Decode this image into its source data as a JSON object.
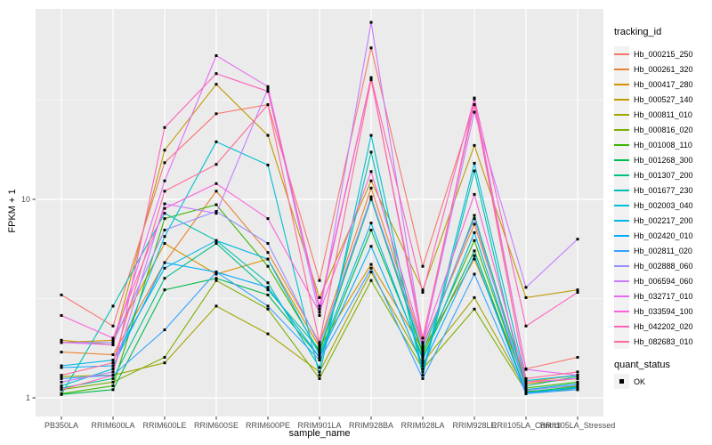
{
  "chart_data": {
    "type": "line",
    "title": "",
    "xlabel": "sample_name",
    "ylabel": "FPKM + 1",
    "y_scale": "log10",
    "ylim": [
      0.8,
      91
    ],
    "y_major_ticks": [
      1,
      10
    ],
    "y_minor_ticks": [
      3.162,
      31.623
    ],
    "grid": true,
    "panel_bg": "#EBEBEB",
    "grid_color": "#FFFFFF",
    "tick_text_color": "#4D4D4D",
    "point_marker": {
      "shape": "square",
      "color": "#000000",
      "size": 3
    },
    "legend": {
      "title": "tracking_id",
      "position": "right"
    },
    "quant_legend": {
      "title": "quant_status",
      "items": [
        "OK"
      ]
    },
    "categories": [
      "PB350LA",
      "RRIM600LA",
      "RRIM600LE",
      "RRIM600SE",
      "RRIM600PE",
      "RRIM901LA",
      "RRIM928BA",
      "RRIM928LA",
      "RRIM928LE",
      "RRII105LA_Control",
      "RRII105LA_Stressed"
    ],
    "series": [
      {
        "name": "Hb_000215_250",
        "color": "#F8766D",
        "values": [
          3.3,
          2.3,
          15.3,
          27,
          30,
          3.9,
          58,
          4.6,
          30,
          1.4,
          1.6
        ]
      },
      {
        "name": "Hb_000261_320",
        "color": "#EA8331",
        "values": [
          1.7,
          1.65,
          4.8,
          11,
          5.4,
          1.9,
          11.4,
          1.85,
          7.5,
          1.2,
          1.3
        ]
      },
      {
        "name": "Hb_000417_280",
        "color": "#D89000",
        "values": [
          1.9,
          1.95,
          6.0,
          4.2,
          5.0,
          1.8,
          4.7,
          1.75,
          5.0,
          1.18,
          1.25
        ]
      },
      {
        "name": "Hb_000527_140",
        "color": "#C09B00",
        "values": [
          1.95,
          1.85,
          17.7,
          38,
          21,
          3.2,
          12.4,
          3.5,
          18.7,
          3.2,
          3.5
        ]
      },
      {
        "name": "Hb_000811_010",
        "color": "#A3A500",
        "values": [
          1.28,
          1.3,
          1.5,
          2.9,
          2.1,
          1.35,
          4.3,
          1.5,
          3.2,
          1.1,
          1.15
        ]
      },
      {
        "name": "Hb_000816_020",
        "color": "#7CAE00",
        "values": [
          1.1,
          1.2,
          1.6,
          3.9,
          2.8,
          1.25,
          3.9,
          1.4,
          2.8,
          1.08,
          1.1
        ]
      },
      {
        "name": "Hb_001008_110",
        "color": "#39B600",
        "values": [
          1.05,
          1.15,
          8.0,
          9.4,
          4.6,
          1.7,
          10.3,
          1.65,
          6.2,
          1.12,
          1.2
        ]
      },
      {
        "name": "Hb_001268_300",
        "color": "#00BB4E",
        "values": [
          1.04,
          1.1,
          3.5,
          4.0,
          3.3,
          1.6,
          7.0,
          1.6,
          5.5,
          1.07,
          1.14
        ]
      },
      {
        "name": "Hb_001307_200",
        "color": "#00C087",
        "values": [
          1.12,
          1.25,
          4.0,
          6.0,
          3.5,
          1.75,
          10.0,
          1.7,
          8.3,
          1.15,
          1.28
        ]
      },
      {
        "name": "Hb_001677_230",
        "color": "#00C0B2",
        "values": [
          1.04,
          2.9,
          8.5,
          6.2,
          3.8,
          1.42,
          17.3,
          1.3,
          13.9,
          1.05,
          1.13
        ]
      },
      {
        "name": "Hb_002003_040",
        "color": "#00BFD4",
        "values": [
          1.15,
          1.4,
          6.5,
          19.5,
          14.9,
          1.3,
          21,
          1.35,
          15.2,
          1.22,
          1.3
        ]
      },
      {
        "name": "Hb_002217_200",
        "color": "#00B8E5",
        "values": [
          1.45,
          1.55,
          4.5,
          6.2,
          5.0,
          1.65,
          7.6,
          1.55,
          6.8,
          1.1,
          1.18
        ]
      },
      {
        "name": "Hb_002420_010",
        "color": "#00ACFC",
        "values": [
          1.42,
          1.45,
          4.8,
          4.3,
          3.6,
          1.6,
          5.8,
          1.45,
          5.2,
          1.06,
          1.12
        ]
      },
      {
        "name": "Hb_002811_020",
        "color": "#35A2FF",
        "values": [
          1.25,
          1.3,
          2.2,
          4.3,
          2.9,
          1.55,
          4.5,
          1.25,
          4.2,
          1.05,
          1.1
        ]
      },
      {
        "name": "Hb_002888_060",
        "color": "#9590FF",
        "values": [
          1.9,
          1.9,
          7.0,
          8.7,
          6.0,
          1.85,
          10.2,
          1.8,
          8.0,
          1.09,
          1.16
        ]
      },
      {
        "name": "Hb_006594_060",
        "color": "#C77CFF",
        "values": [
          1.2,
          1.35,
          9.5,
          8.5,
          36,
          2.6,
          78,
          1.9,
          27.5,
          3.6,
          6.3
        ]
      },
      {
        "name": "Hb_032717_010",
        "color": "#E76BF3",
        "values": [
          1.9,
          1.85,
          12.4,
          53,
          37,
          2.8,
          41,
          1.85,
          32,
          1.39,
          1.3
        ]
      },
      {
        "name": "Hb_033594_100",
        "color": "#FA62DB",
        "values": [
          2.6,
          2.0,
          9.0,
          12,
          8.0,
          2.7,
          13.8,
          1.9,
          10.6,
          1.2,
          1.25
        ]
      },
      {
        "name": "Hb_042202_020",
        "color": "#FF62BC",
        "values": [
          1.1,
          1.3,
          23,
          43,
          35,
          2.9,
          41,
          3.4,
          32.4,
          2.3,
          3.4
        ]
      },
      {
        "name": "Hb_082683_010",
        "color": "#FF6A98",
        "values": [
          1.3,
          1.5,
          11,
          15,
          30,
          1.9,
          40,
          2.0,
          30,
          1.25,
          1.35
        ]
      }
    ]
  }
}
